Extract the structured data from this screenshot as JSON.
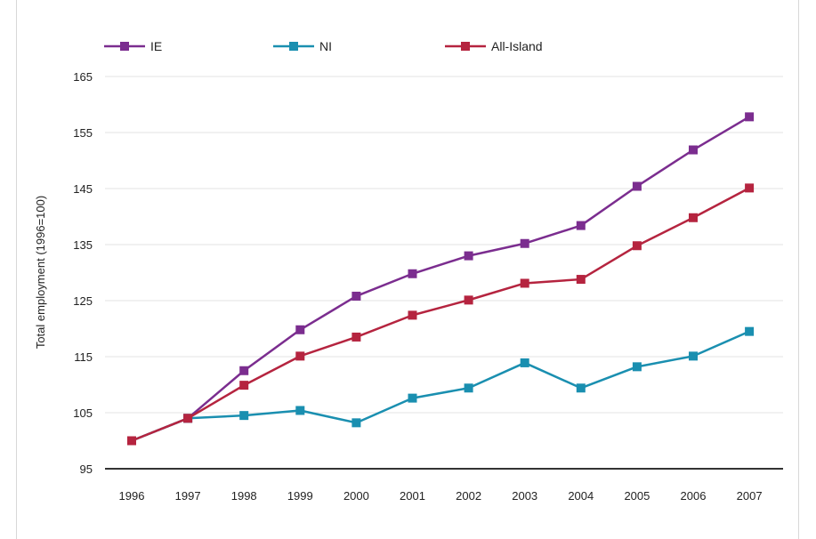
{
  "chart_data": {
    "type": "line",
    "title": "",
    "xlabel": "",
    "ylabel": "Total employment (1996=100)",
    "x": [
      "1996",
      "1997",
      "1998",
      "1999",
      "2000",
      "2001",
      "2002",
      "2003",
      "2004",
      "2005",
      "2006",
      "2007"
    ],
    "ylim": [
      95,
      165
    ],
    "yticks": [
      95,
      105,
      115,
      125,
      135,
      145,
      155,
      165
    ],
    "grid": true,
    "legend_position": "top",
    "series": [
      {
        "name": "IE",
        "color": "#7b2d8f",
        "values": [
          100,
          104,
          112.5,
          119.8,
          125.8,
          129.8,
          133,
          135.2,
          138.4,
          145.4,
          151.9,
          157.8
        ]
      },
      {
        "name": "NI",
        "color": "#1a8fb0",
        "values": [
          100,
          104,
          104.5,
          105.4,
          103.2,
          107.6,
          109.4,
          113.9,
          109.4,
          113.2,
          115.1,
          119.5
        ]
      },
      {
        "name": "All-Island",
        "color": "#b5243f",
        "values": [
          100,
          104,
          109.9,
          115.1,
          118.5,
          122.4,
          125.1,
          128.1,
          128.8,
          134.8,
          139.8,
          145.1
        ]
      }
    ]
  }
}
